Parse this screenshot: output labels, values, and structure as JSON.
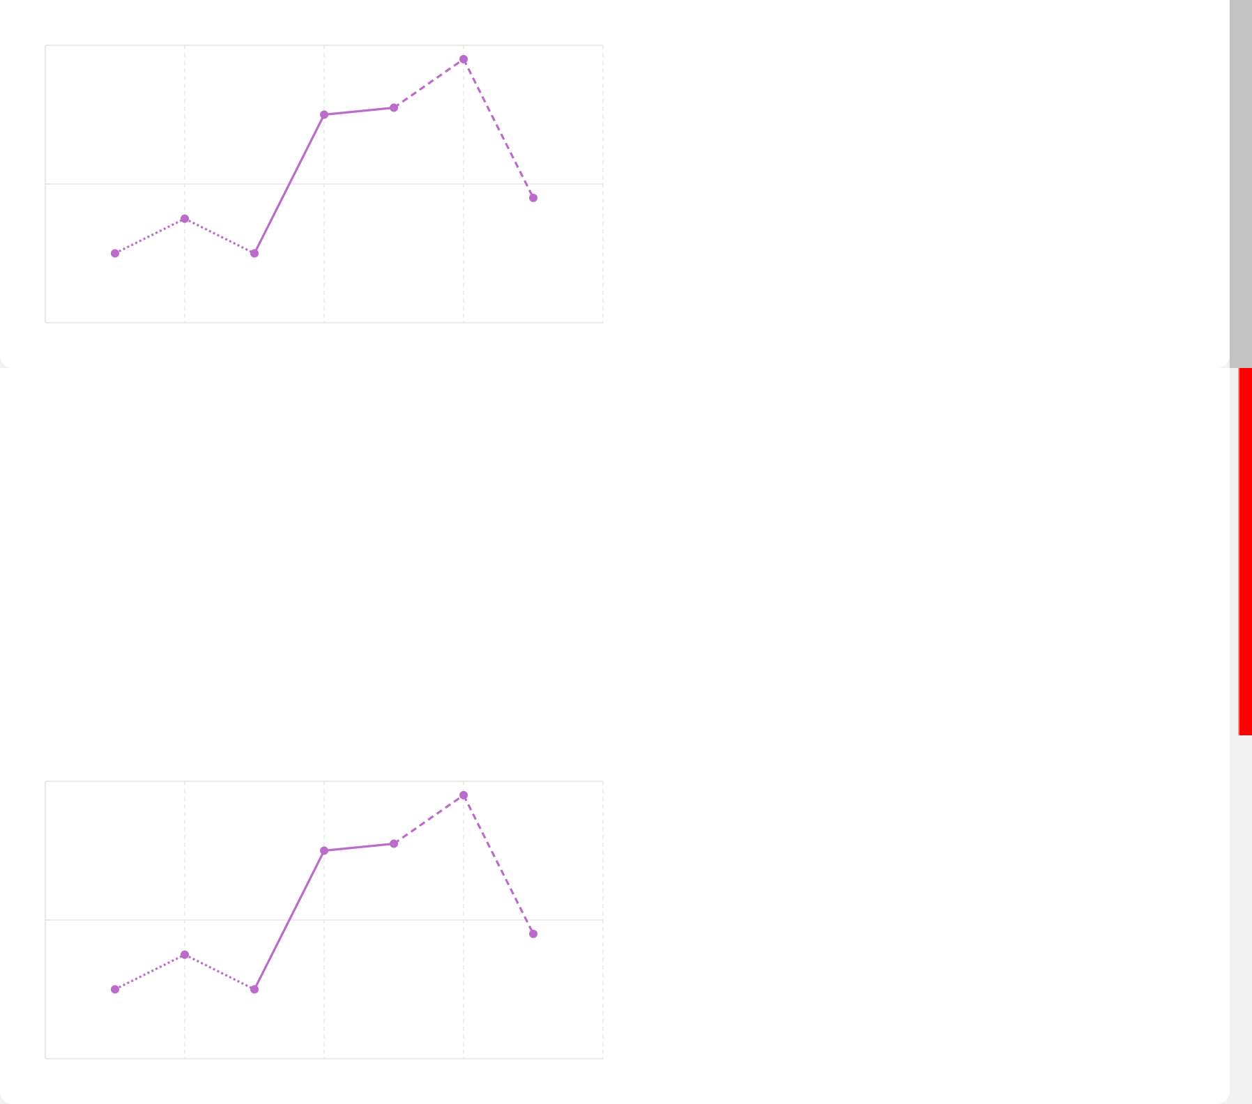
{
  "colors": {
    "series": "#bb6bc9",
    "grid": "#e6e6e6",
    "frame": "#e3e3e3",
    "scrollbar": "#c2c2c2",
    "scroll_marker": "#ff0000"
  },
  "chart_data": [
    {
      "type": "line",
      "title": "",
      "xlabel": "",
      "ylabel": "",
      "grid": true,
      "xlim": [
        0,
        8
      ],
      "ylim": [
        0,
        4
      ],
      "x": [
        1,
        2,
        3,
        4,
        5,
        6,
        7
      ],
      "series": [
        {
          "values": [
            1.0,
            1.5,
            1.0,
            3.0,
            3.1,
            3.8,
            1.8
          ],
          "segment_styles": [
            "dotted",
            "dotted",
            "solid",
            "solid",
            "dashed",
            "dashed"
          ]
        }
      ]
    },
    {
      "type": "line",
      "title": "",
      "xlabel": "",
      "ylabel": "",
      "grid": true,
      "xlim": [
        0,
        8
      ],
      "ylim": [
        0,
        4
      ],
      "x": [
        1,
        2,
        3,
        4,
        5,
        6,
        7
      ],
      "series": [
        {
          "values": [
            1.0,
            1.5,
            1.0,
            3.0,
            3.1,
            3.8,
            1.8
          ],
          "segment_styles": [
            "dotted",
            "dotted",
            "solid",
            "solid",
            "dashed",
            "dashed"
          ]
        }
      ]
    }
  ]
}
